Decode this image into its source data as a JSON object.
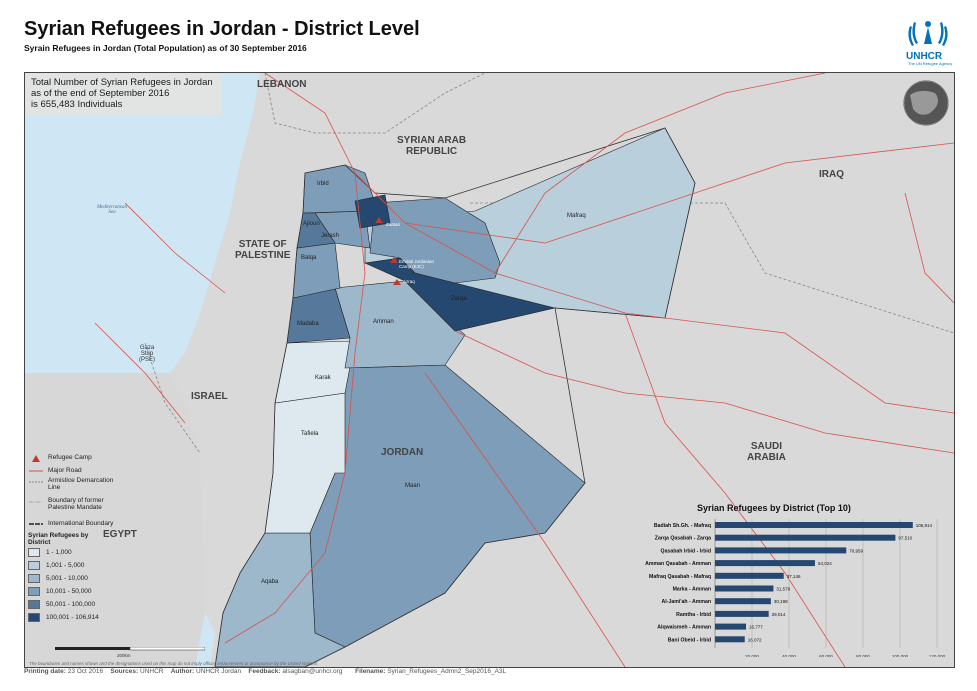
{
  "header": {
    "title": "Syrian Refugees in Jordan - District Level",
    "subtitle": "Syrain Refugees in Jordan (Total Population) as of 30 September 2016",
    "logo_text": "UNHCR",
    "logo_sub": "The UN Refugee Agency"
  },
  "total_box": {
    "line1": "Total Number of Syrian Refugees in Jordan",
    "line2": "as of the end of September 2016",
    "line3": "is 655,483 Individuals"
  },
  "countries": {
    "lebanon": "LEBANON",
    "syria_1": "SYRIAN ARAB",
    "syria_2": "REPUBLIC",
    "iraq": "IRAQ",
    "palestine_1": "STATE OF",
    "palestine_2": "PALESTINE",
    "israel": "ISRAEL",
    "jordan": "JORDAN",
    "saudi_1": "SAUDI",
    "saudi_2": "ARABIA",
    "egypt": "EGYPT",
    "gaza_1": "Gaza",
    "gaza_2": "Strip",
    "gaza_3": "(PSE)",
    "sea_1": "Mediterranean",
    "sea_2": "Sea"
  },
  "districts": {
    "irbid": "Irbid",
    "ajloun": "Ajloun",
    "jerash": "Jerash",
    "balqa": "Balqa",
    "madaba": "Madaba",
    "amman": "Amman",
    "zarqa": "Zarqa",
    "mafraq": "Mafraq",
    "karak": "Karak",
    "tafiela": "Tafiela",
    "maan": "Maan",
    "aqaba": "Aqaba"
  },
  "camps": {
    "zaatari": "Zaatari",
    "ejc": "Emirati Jordanian Camp (EJC)",
    "azraq": "Azraq"
  },
  "legend": {
    "refugee_camp": "Refugee Camp",
    "major_road": "Major Road",
    "armistice_1": "Armistice Demarcation",
    "armistice_2": "Line",
    "boundary_1": "Boundary of former",
    "boundary_2": "Palestine Mandate",
    "intl_boundary": "International Boundary",
    "classes_title_1": "Syrian Refugees by",
    "classes_title_2": "District",
    "classes": [
      "1 - 1,000",
      "1,001 - 5,000",
      "5,001 - 10,000",
      "10,001 - 50,000",
      "50,001 - 100,000",
      "100,001 - 106,914"
    ],
    "class_colors": [
      "#dde9ee",
      "#b9cfdc",
      "#9db7cb",
      "#7d9db8",
      "#56799b",
      "#24486f"
    ]
  },
  "scale": {
    "label": "200km"
  },
  "chart_data": {
    "type": "bar",
    "title": "Syrian Refugees by District (Top 10)",
    "categories": [
      "Badiah Sh.Gh. - Mafraq",
      "Zarqa Qasabah - Zarqa",
      "Qasabah Irbid - Irbid",
      "Amman Qasabah - Amman",
      "Mafraq Qasabah - Mafraq",
      "Marka - Amman",
      "Al-Jami'ah - Amman",
      "Ramtha - Irbid",
      "Alqwaismeh - Amman",
      "Bani Obeid - Irbid"
    ],
    "values": [
      106914,
      97510,
      70959,
      54024,
      37146,
      31579,
      30198,
      29014,
      16777,
      16072
    ],
    "value_labels": [
      "106,914",
      "97,510",
      "70,959",
      "54,024",
      "37,146",
      "31,579",
      "30,198",
      "29,014",
      "16,777",
      "16,072"
    ],
    "xticks": [
      "20,000",
      "40,000",
      "60,000",
      "80,000",
      "100,000",
      "120,000"
    ],
    "xlim": [
      0,
      120000
    ],
    "bar_color": "#24486f"
  },
  "footer": {
    "printing_date_label": "Printing date:",
    "printing_date": "23 Oct 2016",
    "sources_label": "Sources:",
    "sources": "UNHCR",
    "author_label": "Author:",
    "author": "UNHCR Jordan",
    "feedback_label": "Feedback:",
    "feedback": "alsagban@unhcr.org",
    "filename_label": "Filename:",
    "filename": "Syrian_Refugees_Admn2_Sep2016_A3L",
    "disclaimer": "The boundaries and names shown and the designations used on this map do not imply official endorsement or acceptance by the United Nations."
  }
}
